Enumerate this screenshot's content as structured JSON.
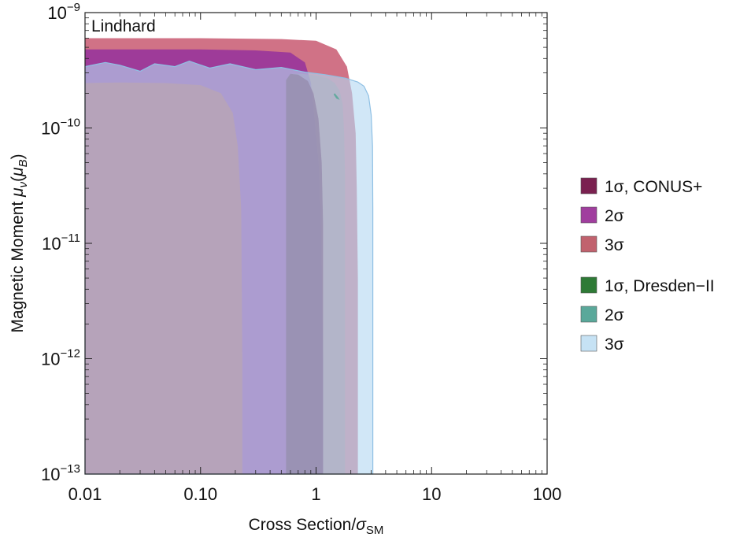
{
  "chart_data": {
    "type": "area",
    "annotation": "Lindhard",
    "xlabel": {
      "text": "Cross Section/",
      "sym": "σ",
      "sub": "SM"
    },
    "ylabel": {
      "text": "Magnetic Moment ",
      "mu": "μ",
      "nu": "ν",
      "unit_mu": "μ",
      "unit_sub": "B"
    },
    "x_scale": "log",
    "y_scale": "log",
    "xlim": [
      0.01,
      100
    ],
    "ylim": [
      1e-13,
      1e-09
    ],
    "x_ticks": [
      {
        "value": 0.01,
        "label": "0.01"
      },
      {
        "value": 0.1,
        "label": "0.10"
      },
      {
        "value": 1,
        "label": "1"
      },
      {
        "value": 10,
        "label": "10"
      },
      {
        "value": 100,
        "label": "100"
      }
    ],
    "y_ticks": [
      {
        "value": 1e-13,
        "base": "10",
        "exp": "−13"
      },
      {
        "value": 1e-12,
        "base": "10",
        "exp": "−12"
      },
      {
        "value": 1e-11,
        "base": "10",
        "exp": "−11"
      },
      {
        "value": 1e-10,
        "base": "10",
        "exp": "−10"
      },
      {
        "value": 1e-09,
        "base": "10",
        "exp": "−9"
      }
    ],
    "series": [
      {
        "name": "3σ",
        "color": "#b94e5c",
        "points": [
          [
            0.01,
            1e-13
          ],
          [
            0.01,
            2.45e-10
          ],
          [
            0.02,
            2.48e-10
          ],
          [
            0.05,
            2.45e-10
          ],
          [
            0.1,
            2.35e-10
          ],
          [
            0.15,
            2e-10
          ],
          [
            0.19,
            1.35e-10
          ],
          [
            0.21,
            7e-11
          ],
          [
            0.225,
            2e-11
          ],
          [
            0.23,
            1e-12
          ],
          [
            0.23,
            1e-13
          ]
        ]
      },
      {
        "name": "2σ",
        "color": "#9b389a",
        "points": [
          [
            0.01,
            1e-13
          ],
          [
            0.01,
            4.8e-10
          ],
          [
            0.1,
            4.8e-10
          ],
          [
            0.3,
            4.7e-10
          ],
          [
            0.6,
            4.5e-10
          ],
          [
            0.8,
            3.7e-10
          ],
          [
            0.9,
            2.5e-10
          ],
          [
            0.97,
            1.2e-10
          ],
          [
            1.05,
            5e-11
          ],
          [
            1.1,
            1.5e-11
          ],
          [
            1.15,
            1e-12
          ],
          [
            1.15,
            1e-13
          ]
        ]
      },
      {
        "name": "3σ",
        "color": "#c0435e",
        "points": [
          [
            0.01,
            1e-13
          ],
          [
            0.01,
            6e-10
          ],
          [
            0.1,
            6e-10
          ],
          [
            0.5,
            5.9e-10
          ],
          [
            1,
            5.7e-10
          ],
          [
            1.5,
            4.8e-10
          ],
          [
            1.85,
            3.4e-10
          ],
          [
            2.05,
            2e-10
          ],
          [
            2.2,
            9e-11
          ],
          [
            2.25,
            3e-11
          ],
          [
            2.3,
            5e-12
          ],
          [
            2.3,
            1e-13
          ]
        ]
      },
      {
        "name": "1σ, CONUS+",
        "color": "#6d1f4a",
        "points": [
          [
            0.55,
            1e-13
          ],
          [
            0.55,
            2.6e-10
          ],
          [
            0.6,
            2.95e-10
          ],
          [
            0.7,
            2.9e-10
          ],
          [
            0.85,
            2.55e-10
          ],
          [
            0.95,
            2e-10
          ],
          [
            1.05,
            1.2e-10
          ],
          [
            1.12,
            5e-11
          ],
          [
            1.15,
            1.5e-11
          ],
          [
            1.15,
            1e-13
          ]
        ]
      },
      {
        "name": "3σ, Dresden−II",
        "color": "#b5d9f2",
        "points": [
          [
            0.01,
            1e-13
          ],
          [
            0.01,
            3.4e-10
          ],
          [
            0.015,
            3.7e-10
          ],
          [
            0.02,
            3.5e-10
          ],
          [
            0.03,
            3.1e-10
          ],
          [
            0.04,
            3.6e-10
          ],
          [
            0.06,
            3.4e-10
          ],
          [
            0.08,
            3.8e-10
          ],
          [
            0.12,
            3.3e-10
          ],
          [
            0.18,
            3.6e-10
          ],
          [
            0.3,
            3.2e-10
          ],
          [
            0.5,
            3.35e-10
          ],
          [
            0.8,
            3.05e-10
          ],
          [
            1.2,
            2.9e-10
          ],
          [
            1.8,
            2.7e-10
          ],
          [
            2.3,
            2.5e-10
          ],
          [
            2.6,
            2.3e-10
          ],
          [
            2.85,
            1.9e-10
          ],
          [
            3,
            1.3e-10
          ],
          [
            3.08,
            7e-11
          ],
          [
            3.1,
            2e-11
          ],
          [
            3.1,
            1e-12
          ],
          [
            3.1,
            1e-13
          ]
        ]
      },
      {
        "name": "2σ, Dresden−II",
        "color": "#5aa89a",
        "points": [
          [
            1.45,
            2e-10
          ],
          [
            1.55,
            1.85e-10
          ],
          [
            1.6,
            1.75e-10
          ],
          [
            1.5,
            1.8e-10
          ],
          [
            1.42,
            1.95e-10
          ]
        ]
      }
    ],
    "overlay": {
      "name": "grey-shade",
      "color": "#8a8a8a",
      "points": [
        [
          0.55,
          2.95e-10
        ],
        [
          0.75,
          2.95e-10
        ],
        [
          1,
          2.85e-10
        ],
        [
          1.25,
          2.7e-10
        ],
        [
          1.45,
          2.45e-10
        ],
        [
          1.6,
          2.1e-10
        ],
        [
          1.7,
          1.6e-10
        ],
        [
          1.75,
          9e-11
        ],
        [
          1.78,
          4e-11
        ],
        [
          1.78,
          1e-12
        ],
        [
          1.78,
          1e-13
        ],
        [
          1.15,
          1e-13
        ],
        [
          1.15,
          1.5e-11
        ],
        [
          1.12,
          5e-11
        ],
        [
          1.05,
          1.2e-10
        ],
        [
          0.95,
          2e-10
        ],
        [
          0.85,
          2.55e-10
        ],
        [
          0.7,
          2.9e-10
        ],
        [
          0.6,
          2.95e-10
        ]
      ]
    },
    "legend": {
      "placement": "right",
      "groups": [
        [
          {
            "label": "1σ, CONUS+",
            "color": "#7a2150"
          },
          {
            "label": "2σ",
            "color": "#a03e9e"
          },
          {
            "label": "3σ",
            "color": "#c1626e"
          }
        ],
        [
          {
            "label": "1σ, Dresden−II",
            "color": "#2e7a36"
          },
          {
            "label": "2σ",
            "color": "#5aa89a"
          },
          {
            "label": "3σ",
            "color": "#c6e2f4"
          }
        ]
      ]
    }
  }
}
